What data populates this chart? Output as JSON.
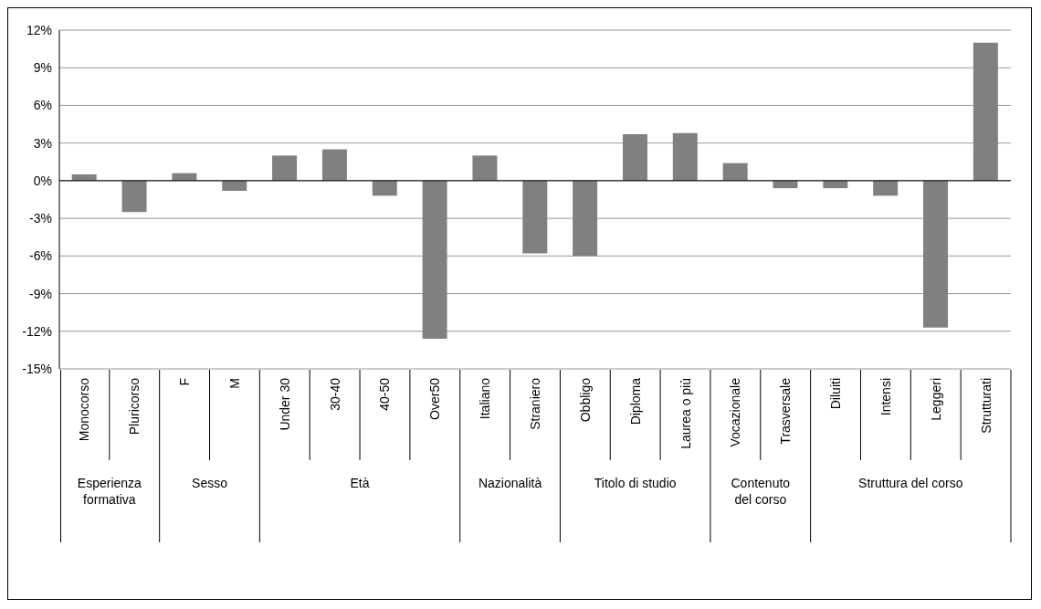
{
  "chart_data": {
    "type": "bar",
    "categories": [
      "Monocorso",
      "Pluricorso",
      "F",
      "M",
      "Under 30",
      "30-40",
      "40-50",
      "Over50",
      "Italiano",
      "Straniero",
      "Obbligo",
      "Diploma",
      "Laurea o più",
      "Vocazionale",
      "Trasversale",
      "Diluiti",
      "Intensi",
      "Leggeri",
      "Strutturati"
    ],
    "values": [
      0.5,
      -2.5,
      0.6,
      -0.8,
      2.0,
      2.5,
      -1.2,
      -12.6,
      2.0,
      -5.8,
      -6.0,
      3.7,
      3.8,
      1.4,
      -0.6,
      -0.6,
      -1.2,
      -11.7,
      11.0
    ],
    "color": "#808080",
    "ylim": [
      -15,
      12
    ],
    "yticks": [
      {
        "value": -15,
        "label": "-15%"
      },
      {
        "value": -12,
        "label": "-12%"
      },
      {
        "value": -9,
        "label": "-9%"
      },
      {
        "value": -6,
        "label": "-6%"
      },
      {
        "value": -3,
        "label": "-3%"
      },
      {
        "value": 0,
        "label": "0%"
      },
      {
        "value": 3,
        "label": "3%"
      },
      {
        "value": 6,
        "label": "6%"
      },
      {
        "value": 9,
        "label": "9%"
      },
      {
        "value": 12,
        "label": "12%"
      }
    ],
    "grid": "y",
    "legend": false,
    "annotations": [
      "Esperienza formativa",
      "Sesso",
      "Età",
      "Nazionalità",
      "Titolo di studio",
      "Contenuto del corso",
      "Struttura del corso"
    ]
  }
}
